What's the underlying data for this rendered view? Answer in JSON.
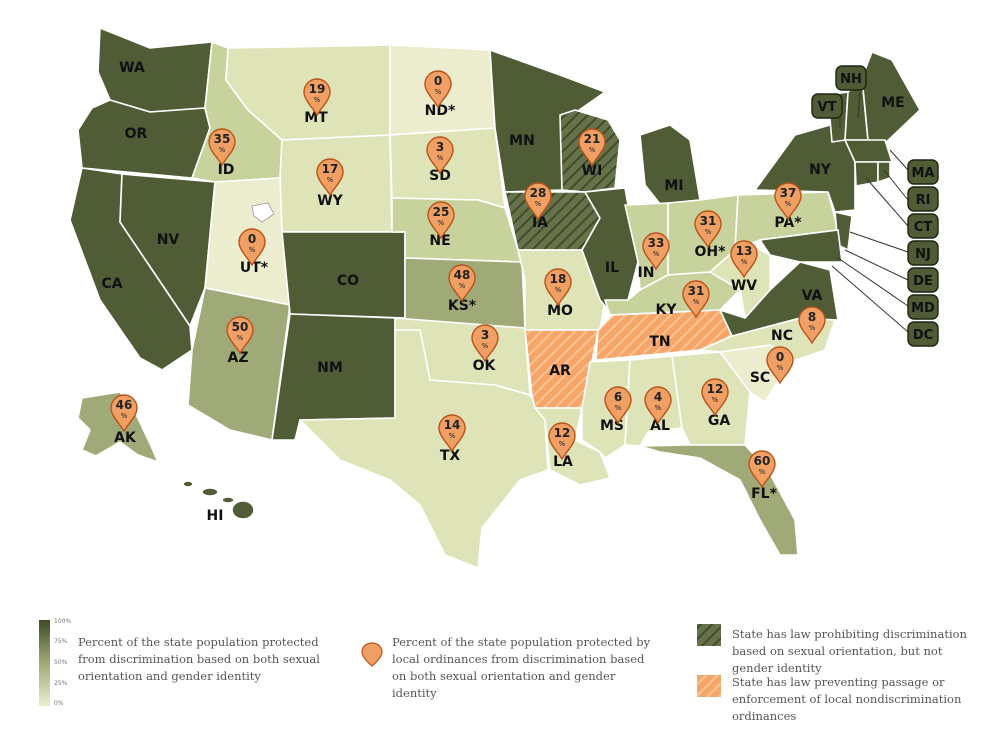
{
  "colors": {
    "scale": [
      "#ececcf",
      "#dfe4b8",
      "#c7d29c",
      "#a0aa78",
      "#7e8a5b",
      "#4f5c35"
    ],
    "restrict_orange": "#f6a467",
    "pin_fill": "#f0a064"
  },
  "states": [
    {
      "abbr": "WA",
      "level": 5,
      "pin": null
    },
    {
      "abbr": "OR",
      "level": 5,
      "pin": null
    },
    {
      "abbr": "CA",
      "level": 5,
      "pin": null
    },
    {
      "abbr": "NV",
      "level": 5,
      "pin": null
    },
    {
      "abbr": "ID",
      "level": 2,
      "pin": "35"
    },
    {
      "abbr": "MT",
      "level": 1,
      "pin": "19"
    },
    {
      "abbr": "WY",
      "level": 1,
      "pin": "17"
    },
    {
      "abbr": "UT*",
      "level": 0,
      "pin": "0"
    },
    {
      "abbr": "AZ",
      "level": 3,
      "pin": "50"
    },
    {
      "abbr": "CO",
      "level": 5,
      "pin": null
    },
    {
      "abbr": "NM",
      "level": 5,
      "pin": null
    },
    {
      "abbr": "ND*",
      "level": 0,
      "pin": "0"
    },
    {
      "abbr": "SD",
      "level": 1,
      "pin": "3"
    },
    {
      "abbr": "NE",
      "level": 2,
      "pin": "25"
    },
    {
      "abbr": "KS*",
      "level": 3,
      "pin": "48"
    },
    {
      "abbr": "OK",
      "level": 1,
      "pin": "3"
    },
    {
      "abbr": "TX",
      "level": 1,
      "pin": "14"
    },
    {
      "abbr": "MN",
      "level": 5,
      "pin": null
    },
    {
      "abbr": "IA",
      "level": 5,
      "pin": "28",
      "hatch": "green"
    },
    {
      "abbr": "MO",
      "level": 1,
      "pin": "18"
    },
    {
      "abbr": "AR",
      "level": 0,
      "pin": null,
      "hatch": "orange"
    },
    {
      "abbr": "LA",
      "level": 1,
      "pin": "12"
    },
    {
      "abbr": "WI",
      "level": 5,
      "pin": "21",
      "hatch": "green"
    },
    {
      "abbr": "IL",
      "level": 5,
      "pin": null
    },
    {
      "abbr": "MI",
      "level": 5,
      "pin": null
    },
    {
      "abbr": "IN",
      "level": 2,
      "pin": "33"
    },
    {
      "abbr": "OH*",
      "level": 2,
      "pin": "31"
    },
    {
      "abbr": "KY",
      "level": 2,
      "pin": "31"
    },
    {
      "abbr": "TN",
      "level": 0,
      "pin": null,
      "hatch": "orange"
    },
    {
      "abbr": "MS",
      "level": 1,
      "pin": "6"
    },
    {
      "abbr": "AL",
      "level": 1,
      "pin": "4"
    },
    {
      "abbr": "GA",
      "level": 1,
      "pin": "12"
    },
    {
      "abbr": "FL*",
      "level": 3,
      "pin": "60"
    },
    {
      "abbr": "SC",
      "level": 0,
      "pin": "0"
    },
    {
      "abbr": "NC",
      "level": 1,
      "pin": "8"
    },
    {
      "abbr": "VA",
      "level": 5,
      "pin": null
    },
    {
      "abbr": "WV",
      "level": 1,
      "pin": "13"
    },
    {
      "abbr": "PA*",
      "level": 2,
      "pin": "37"
    },
    {
      "abbr": "NY",
      "level": 5,
      "pin": null
    },
    {
      "abbr": "ME",
      "level": 5,
      "pin": null
    },
    {
      "abbr": "AK",
      "level": 3,
      "pin": "46"
    },
    {
      "abbr": "HI",
      "level": 5,
      "pin": null
    }
  ],
  "boxed_states": [
    "NH",
    "VT",
    "MA",
    "RI",
    "CT",
    "NJ",
    "DE",
    "MD",
    "DC"
  ],
  "pin_percent_symbol": "%",
  "legend": {
    "ramp_labels": [
      "100%",
      "75%",
      "50%",
      "25%",
      "0%"
    ],
    "scale_text": "Percent of the state population protected from discrimination based on both sexual orientation and gender identity",
    "pin_text": "Percent of the state population protected by local ordinances from discrimination based on both sexual orientation and gender identity",
    "green_hatch_text": "State has law prohibiting discrimination based on sexual orientation, but not gender identity",
    "orange_hatch_text": "State has law preventing passage or enforcement of local nondiscrimination ordinances"
  }
}
